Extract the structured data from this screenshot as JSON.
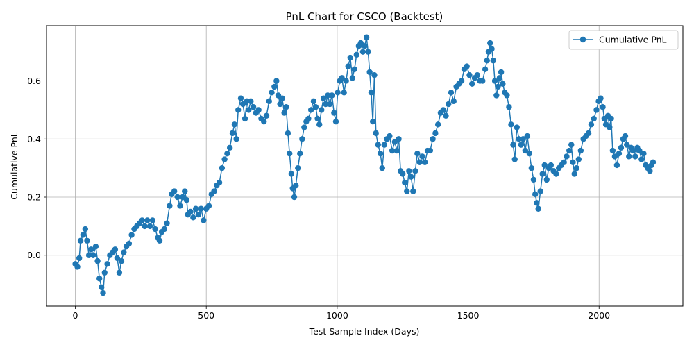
{
  "chart_data": {
    "type": "line",
    "title": "PnL Chart for CSCO (Backtest)",
    "xlabel": "Test Sample Index (Days)",
    "ylabel": "Cumulative PnL",
    "xlim": [
      -110,
      2320
    ],
    "ylim": [
      -0.175,
      0.79
    ],
    "xticks": [
      0,
      500,
      1000,
      1500,
      2000
    ],
    "xtick_labels": [
      "0",
      "500",
      "1000",
      "1500",
      "2000"
    ],
    "yticks": [
      0.0,
      0.2,
      0.4,
      0.6
    ],
    "ytick_labels": [
      "0.0",
      "0.2",
      "0.4",
      "0.6"
    ],
    "grid": true,
    "legend_position": "top-right",
    "color": "#1f77b4",
    "series": [
      {
        "name": "Cumulative PnL",
        "marker": "circle",
        "points": [
          [
            0,
            -0.03
          ],
          [
            8,
            -0.04
          ],
          [
            15,
            -0.01
          ],
          [
            20,
            0.05
          ],
          [
            30,
            0.07
          ],
          [
            38,
            0.09
          ],
          [
            45,
            0.05
          ],
          [
            52,
            0.0
          ],
          [
            60,
            0.02
          ],
          [
            68,
            0.0
          ],
          [
            78,
            0.03
          ],
          [
            85,
            -0.02
          ],
          [
            92,
            -0.08
          ],
          [
            100,
            -0.11
          ],
          [
            106,
            -0.13
          ],
          [
            112,
            -0.06
          ],
          [
            122,
            -0.03
          ],
          [
            132,
            0.0
          ],
          [
            142,
            0.01
          ],
          [
            152,
            0.02
          ],
          [
            160,
            -0.01
          ],
          [
            168,
            -0.06
          ],
          [
            176,
            -0.02
          ],
          [
            185,
            0.01
          ],
          [
            195,
            0.03
          ],
          [
            205,
            0.04
          ],
          [
            215,
            0.07
          ],
          [
            225,
            0.09
          ],
          [
            235,
            0.1
          ],
          [
            245,
            0.11
          ],
          [
            255,
            0.12
          ],
          [
            265,
            0.1
          ],
          [
            275,
            0.12
          ],
          [
            285,
            0.1
          ],
          [
            295,
            0.12
          ],
          [
            305,
            0.09
          ],
          [
            315,
            0.06
          ],
          [
            322,
            0.05
          ],
          [
            330,
            0.08
          ],
          [
            340,
            0.09
          ],
          [
            350,
            0.11
          ],
          [
            360,
            0.17
          ],
          [
            368,
            0.21
          ],
          [
            378,
            0.22
          ],
          [
            390,
            0.2
          ],
          [
            400,
            0.17
          ],
          [
            410,
            0.2
          ],
          [
            418,
            0.22
          ],
          [
            425,
            0.19
          ],
          [
            430,
            0.14
          ],
          [
            440,
            0.15
          ],
          [
            450,
            0.13
          ],
          [
            460,
            0.16
          ],
          [
            470,
            0.14
          ],
          [
            480,
            0.16
          ],
          [
            490,
            0.12
          ],
          [
            500,
            0.16
          ],
          [
            510,
            0.17
          ],
          [
            520,
            0.21
          ],
          [
            530,
            0.22
          ],
          [
            540,
            0.24
          ],
          [
            550,
            0.25
          ],
          [
            560,
            0.3
          ],
          [
            570,
            0.33
          ],
          [
            580,
            0.35
          ],
          [
            590,
            0.37
          ],
          [
            600,
            0.42
          ],
          [
            608,
            0.45
          ],
          [
            615,
            0.4
          ],
          [
            622,
            0.5
          ],
          [
            632,
            0.54
          ],
          [
            640,
            0.52
          ],
          [
            648,
            0.47
          ],
          [
            655,
            0.53
          ],
          [
            662,
            0.5
          ],
          [
            670,
            0.53
          ],
          [
            680,
            0.51
          ],
          [
            690,
            0.49
          ],
          [
            700,
            0.5
          ],
          [
            710,
            0.47
          ],
          [
            720,
            0.46
          ],
          [
            730,
            0.48
          ],
          [
            740,
            0.53
          ],
          [
            750,
            0.56
          ],
          [
            760,
            0.58
          ],
          [
            768,
            0.6
          ],
          [
            775,
            0.55
          ],
          [
            782,
            0.52
          ],
          [
            790,
            0.54
          ],
          [
            798,
            0.49
          ],
          [
            805,
            0.51
          ],
          [
            812,
            0.42
          ],
          [
            818,
            0.35
          ],
          [
            825,
            0.28
          ],
          [
            830,
            0.23
          ],
          [
            836,
            0.2
          ],
          [
            842,
            0.24
          ],
          [
            850,
            0.3
          ],
          [
            858,
            0.35
          ],
          [
            866,
            0.4
          ],
          [
            874,
            0.44
          ],
          [
            882,
            0.46
          ],
          [
            890,
            0.47
          ],
          [
            900,
            0.5
          ],
          [
            910,
            0.53
          ],
          [
            918,
            0.51
          ],
          [
            925,
            0.47
          ],
          [
            932,
            0.45
          ],
          [
            940,
            0.5
          ],
          [
            948,
            0.54
          ],
          [
            956,
            0.52
          ],
          [
            964,
            0.55
          ],
          [
            972,
            0.52
          ],
          [
            980,
            0.55
          ],
          [
            988,
            0.49
          ],
          [
            995,
            0.46
          ],
          [
            1002,
            0.56
          ],
          [
            1010,
            0.6
          ],
          [
            1018,
            0.61
          ],
          [
            1026,
            0.56
          ],
          [
            1034,
            0.6
          ],
          [
            1042,
            0.65
          ],
          [
            1050,
            0.68
          ],
          [
            1058,
            0.61
          ],
          [
            1066,
            0.64
          ],
          [
            1074,
            0.69
          ],
          [
            1082,
            0.72
          ],
          [
            1090,
            0.73
          ],
          [
            1098,
            0.7
          ],
          [
            1105,
            0.72
          ],
          [
            1112,
            0.75
          ],
          [
            1118,
            0.7
          ],
          [
            1124,
            0.63
          ],
          [
            1130,
            0.56
          ],
          [
            1136,
            0.46
          ],
          [
            1142,
            0.62
          ],
          [
            1148,
            0.42
          ],
          [
            1156,
            0.38
          ],
          [
            1165,
            0.35
          ],
          [
            1172,
            0.3
          ],
          [
            1180,
            0.38
          ],
          [
            1190,
            0.4
          ],
          [
            1200,
            0.41
          ],
          [
            1210,
            0.36
          ],
          [
            1220,
            0.39
          ],
          [
            1228,
            0.36
          ],
          [
            1235,
            0.4
          ],
          [
            1242,
            0.29
          ],
          [
            1250,
            0.28
          ],
          [
            1258,
            0.25
          ],
          [
            1266,
            0.22
          ],
          [
            1274,
            0.29
          ],
          [
            1282,
            0.27
          ],
          [
            1290,
            0.22
          ],
          [
            1298,
            0.29
          ],
          [
            1306,
            0.35
          ],
          [
            1315,
            0.32
          ],
          [
            1325,
            0.34
          ],
          [
            1335,
            0.32
          ],
          [
            1345,
            0.36
          ],
          [
            1355,
            0.36
          ],
          [
            1365,
            0.4
          ],
          [
            1375,
            0.42
          ],
          [
            1385,
            0.45
          ],
          [
            1395,
            0.49
          ],
          [
            1405,
            0.5
          ],
          [
            1415,
            0.48
          ],
          [
            1425,
            0.52
          ],
          [
            1435,
            0.56
          ],
          [
            1445,
            0.53
          ],
          [
            1455,
            0.58
          ],
          [
            1465,
            0.59
          ],
          [
            1475,
            0.6
          ],
          [
            1485,
            0.64
          ],
          [
            1495,
            0.65
          ],
          [
            1505,
            0.62
          ],
          [
            1515,
            0.59
          ],
          [
            1525,
            0.61
          ],
          [
            1535,
            0.62
          ],
          [
            1545,
            0.6
          ],
          [
            1555,
            0.6
          ],
          [
            1565,
            0.64
          ],
          [
            1572,
            0.67
          ],
          [
            1578,
            0.7
          ],
          [
            1584,
            0.73
          ],
          [
            1590,
            0.71
          ],
          [
            1596,
            0.67
          ],
          [
            1602,
            0.6
          ],
          [
            1608,
            0.55
          ],
          [
            1614,
            0.58
          ],
          [
            1620,
            0.61
          ],
          [
            1626,
            0.63
          ],
          [
            1632,
            0.59
          ],
          [
            1640,
            0.56
          ],
          [
            1648,
            0.55
          ],
          [
            1656,
            0.51
          ],
          [
            1664,
            0.45
          ],
          [
            1672,
            0.38
          ],
          [
            1678,
            0.33
          ],
          [
            1686,
            0.44
          ],
          [
            1694,
            0.4
          ],
          [
            1702,
            0.38
          ],
          [
            1710,
            0.4
          ],
          [
            1718,
            0.36
          ],
          [
            1726,
            0.41
          ],
          [
            1734,
            0.35
          ],
          [
            1742,
            0.3
          ],
          [
            1750,
            0.26
          ],
          [
            1756,
            0.21
          ],
          [
            1762,
            0.18
          ],
          [
            1768,
            0.16
          ],
          [
            1776,
            0.22
          ],
          [
            1784,
            0.28
          ],
          [
            1792,
            0.31
          ],
          [
            1800,
            0.26
          ],
          [
            1808,
            0.3
          ],
          [
            1816,
            0.31
          ],
          [
            1826,
            0.29
          ],
          [
            1836,
            0.28
          ],
          [
            1846,
            0.3
          ],
          [
            1856,
            0.31
          ],
          [
            1866,
            0.32
          ],
          [
            1876,
            0.34
          ],
          [
            1886,
            0.36
          ],
          [
            1894,
            0.38
          ],
          [
            1900,
            0.32
          ],
          [
            1906,
            0.28
          ],
          [
            1914,
            0.3
          ],
          [
            1922,
            0.33
          ],
          [
            1930,
            0.36
          ],
          [
            1940,
            0.4
          ],
          [
            1950,
            0.41
          ],
          [
            1960,
            0.42
          ],
          [
            1970,
            0.45
          ],
          [
            1980,
            0.47
          ],
          [
            1990,
            0.5
          ],
          [
            1998,
            0.53
          ],
          [
            2006,
            0.54
          ],
          [
            2014,
            0.51
          ],
          [
            2020,
            0.47
          ],
          [
            2026,
            0.45
          ],
          [
            2034,
            0.48
          ],
          [
            2040,
            0.44
          ],
          [
            2046,
            0.47
          ],
          [
            2052,
            0.36
          ],
          [
            2060,
            0.34
          ],
          [
            2068,
            0.31
          ],
          [
            2076,
            0.35
          ],
          [
            2084,
            0.37
          ],
          [
            2092,
            0.4
          ],
          [
            2100,
            0.41
          ],
          [
            2106,
            0.38
          ],
          [
            2114,
            0.34
          ],
          [
            2122,
            0.37
          ],
          [
            2130,
            0.36
          ],
          [
            2138,
            0.34
          ],
          [
            2146,
            0.37
          ],
          [
            2154,
            0.36
          ],
          [
            2162,
            0.33
          ],
          [
            2170,
            0.35
          ],
          [
            2178,
            0.31
          ],
          [
            2186,
            0.3
          ],
          [
            2194,
            0.29
          ],
          [
            2200,
            0.31
          ],
          [
            2206,
            0.32
          ]
        ]
      }
    ]
  }
}
